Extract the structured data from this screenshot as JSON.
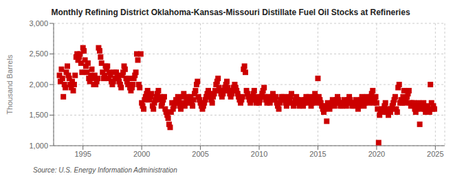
{
  "chart_data": {
    "type": "scatter",
    "title": "Monthly Refining District Oklahoma-Kansas-Missouri Distillate Fuel Oil Stocks at Refineries",
    "ylabel": "Thousand Barrels",
    "annotation": "Source: U.S. Energy Information Administration",
    "color": "#cc0000",
    "marker": "square",
    "grid": true,
    "xlim": [
      1992.5,
      2025.8
    ],
    "xticks": [
      1995,
      2000,
      2005,
      2010,
      2015,
      2020,
      2025
    ],
    "ylim": [
      1000,
      3000
    ],
    "yticks": [
      {
        "value": 1000,
        "label": "1,000"
      },
      {
        "value": 1500,
        "label": "1,500"
      },
      {
        "value": 2000,
        "label": "2,000"
      },
      {
        "value": 2500,
        "label": "2,500"
      },
      {
        "value": 3000,
        "label": "3,000"
      }
    ],
    "x": [
      1993.0,
      1993.08,
      1993.17,
      1993.25,
      1993.33,
      1993.42,
      1993.5,
      1993.58,
      1993.67,
      1993.75,
      1993.83,
      1993.92,
      1994.0,
      1994.08,
      1994.17,
      1994.25,
      1994.33,
      1994.42,
      1994.5,
      1994.58,
      1994.67,
      1994.75,
      1994.83,
      1994.92,
      1995.0,
      1995.08,
      1995.17,
      1995.25,
      1995.33,
      1995.42,
      1995.5,
      1995.58,
      1995.67,
      1995.75,
      1995.83,
      1995.92,
      1996.0,
      1996.08,
      1996.17,
      1996.25,
      1996.33,
      1996.42,
      1996.5,
      1996.58,
      1996.67,
      1996.75,
      1996.83,
      1996.92,
      1997.0,
      1997.08,
      1997.17,
      1997.25,
      1997.33,
      1997.42,
      1997.5,
      1997.58,
      1997.67,
      1997.75,
      1997.83,
      1997.92,
      1998.0,
      1998.08,
      1998.17,
      1998.25,
      1998.33,
      1998.42,
      1998.5,
      1998.58,
      1998.67,
      1998.75,
      1998.83,
      1998.92,
      1999.0,
      1999.08,
      1999.17,
      1999.25,
      1999.33,
      1999.42,
      1999.5,
      1999.58,
      1999.67,
      1999.75,
      1999.83,
      1999.92,
      2000.0,
      2000.08,
      2000.17,
      2000.25,
      2000.33,
      2000.42,
      2000.5,
      2000.58,
      2000.67,
      2000.75,
      2000.83,
      2000.92,
      2001.0,
      2001.08,
      2001.17,
      2001.25,
      2001.33,
      2001.42,
      2001.5,
      2001.58,
      2001.67,
      2001.75,
      2001.83,
      2001.92,
      2002.0,
      2002.08,
      2002.17,
      2002.25,
      2002.33,
      2002.42,
      2002.5,
      2002.58,
      2002.67,
      2002.75,
      2002.83,
      2002.92,
      2003.0,
      2003.08,
      2003.17,
      2003.25,
      2003.33,
      2003.42,
      2003.5,
      2003.58,
      2003.67,
      2003.75,
      2003.83,
      2003.92,
      2004.0,
      2004.08,
      2004.17,
      2004.25,
      2004.33,
      2004.42,
      2004.5,
      2004.58,
      2004.67,
      2004.75,
      2004.83,
      2004.92,
      2005.0,
      2005.08,
      2005.17,
      2005.25,
      2005.33,
      2005.42,
      2005.5,
      2005.58,
      2005.67,
      2005.75,
      2005.83,
      2005.92,
      2006.0,
      2006.08,
      2006.17,
      2006.25,
      2006.33,
      2006.42,
      2006.5,
      2006.58,
      2006.67,
      2006.75,
      2006.83,
      2006.92,
      2007.0,
      2007.08,
      2007.17,
      2007.25,
      2007.33,
      2007.42,
      2007.5,
      2007.58,
      2007.67,
      2007.75,
      2007.83,
      2007.92,
      2008.0,
      2008.08,
      2008.17,
      2008.25,
      2008.33,
      2008.42,
      2008.5,
      2008.58,
      2008.67,
      2008.75,
      2008.83,
      2008.92,
      2009.0,
      2009.08,
      2009.17,
      2009.25,
      2009.33,
      2009.42,
      2009.5,
      2009.58,
      2009.67,
      2009.75,
      2009.83,
      2009.92,
      2010.0,
      2010.08,
      2010.17,
      2010.25,
      2010.33,
      2010.42,
      2010.5,
      2010.58,
      2010.67,
      2010.75,
      2010.83,
      2010.92,
      2011.0,
      2011.08,
      2011.17,
      2011.25,
      2011.33,
      2011.42,
      2011.5,
      2011.58,
      2011.67,
      2011.75,
      2011.83,
      2011.92,
      2012.0,
      2012.08,
      2012.17,
      2012.25,
      2012.33,
      2012.42,
      2012.5,
      2012.58,
      2012.67,
      2012.75,
      2012.83,
      2012.92,
      2013.0,
      2013.08,
      2013.17,
      2013.25,
      2013.33,
      2013.42,
      2013.5,
      2013.58,
      2013.67,
      2013.75,
      2013.83,
      2013.92,
      2014.0,
      2014.08,
      2014.17,
      2014.25,
      2014.33,
      2014.42,
      2014.5,
      2014.58,
      2014.67,
      2014.75,
      2014.83,
      2014.92,
      2015.0,
      2015.08,
      2015.17,
      2015.25,
      2015.33,
      2015.42,
      2015.5,
      2015.58,
      2015.67,
      2015.75,
      2015.83,
      2015.92,
      2016.0,
      2016.08,
      2016.17,
      2016.25,
      2016.33,
      2016.42,
      2016.5,
      2016.58,
      2016.67,
      2016.75,
      2016.83,
      2016.92,
      2017.0,
      2017.08,
      2017.17,
      2017.25,
      2017.33,
      2017.42,
      2017.5,
      2017.58,
      2017.67,
      2017.75,
      2017.83,
      2017.92,
      2018.0,
      2018.08,
      2018.17,
      2018.25,
      2018.33,
      2018.42,
      2018.5,
      2018.58,
      2018.67,
      2018.75,
      2018.83,
      2018.92,
      2019.0,
      2019.08,
      2019.17,
      2019.25,
      2019.33,
      2019.42,
      2019.5,
      2019.58,
      2019.67,
      2019.75,
      2019.83,
      2019.92,
      2020.0,
      2020.08,
      2020.17,
      2020.25,
      2020.33,
      2020.42,
      2020.5,
      2020.58,
      2020.67,
      2020.75,
      2020.83,
      2020.92,
      2021.0,
      2021.08,
      2021.17,
      2021.25,
      2021.33,
      2021.42,
      2021.5,
      2021.58,
      2021.67,
      2021.75,
      2021.83,
      2021.92,
      2022.0,
      2022.08,
      2022.17,
      2022.25,
      2022.33,
      2022.42,
      2022.5,
      2022.58,
      2022.67,
      2022.75,
      2022.83,
      2022.92,
      2023.0,
      2023.08,
      2023.17,
      2023.25,
      2023.33,
      2023.42,
      2023.5,
      2023.58,
      2023.67,
      2023.75,
      2023.83,
      2023.92,
      2024.0,
      2024.08,
      2024.17,
      2024.25,
      2024.33,
      2024.42,
      2024.5,
      2024.58,
      2024.67,
      2024.75,
      2024.83,
      2024.92
    ],
    "values": [
      2150,
      2050,
      2250,
      2100,
      1800,
      2000,
      1950,
      2200,
      2300,
      2150,
      2100,
      2000,
      1950,
      2050,
      1900,
      2000,
      2150,
      2450,
      2500,
      2400,
      2450,
      2500,
      2350,
      2200,
      2600,
      2550,
      2400,
      2300,
      2200,
      2350,
      2100,
      2050,
      2150,
      2250,
      2100,
      2000,
      2150,
      2000,
      2050,
      2100,
      2600,
      2550,
      2450,
      2350,
      2200,
      2100,
      2150,
      2300,
      2250,
      2300,
      2100,
      2200,
      2150,
      2050,
      2000,
      2050,
      2200,
      2100,
      2200,
      2150,
      2100,
      2050,
      2000,
      1950,
      2150,
      2200,
      2300,
      2250,
      2100,
      2050,
      2000,
      2100,
      1950,
      1900,
      1950,
      2000,
      2100,
      2150,
      2200,
      2500,
      2400,
      2000,
      1950,
      2500,
      1700,
      1650,
      1600,
      1750,
      1800,
      1850,
      1900,
      1800,
      1750,
      1800,
      1850,
      1650,
      1600,
      1700,
      1750,
      1800,
      1850,
      1900,
      1750,
      1800,
      1650,
      1700,
      1750,
      1800,
      1600,
      1550,
      1500,
      1450,
      1350,
      1300,
      1550,
      1700,
      1600,
      1650,
      1700,
      1750,
      1700,
      1800,
      1750,
      1650,
      1600,
      1700,
      1800,
      1850,
      1650,
      1700,
      1750,
      1800,
      1700,
      1750,
      1800,
      1700,
      1650,
      1750,
      1850,
      1900,
      2000,
      2050,
      1800,
      1750,
      1700,
      1650,
      1600,
      1650,
      1700,
      1750,
      1800,
      1850,
      1900,
      1850,
      1800,
      1750,
      1700,
      1800,
      1850,
      1900,
      2000,
      2050,
      2100,
      1950,
      1900,
      1850,
      1800,
      1850,
      1900,
      1950,
      2000,
      2050,
      1950,
      1900,
      1850,
      1800,
      1850,
      1900,
      1950,
      2000,
      1950,
      1900,
      1850,
      1800,
      1750,
      1700,
      1750,
      1800,
      2250,
      2300,
      2200,
      1900,
      1850,
      1800,
      1750,
      1700,
      1750,
      1800,
      1850,
      1900,
      1750,
      1700,
      1800,
      1750,
      1700,
      1750,
      1800,
      1850,
      1900,
      1950,
      1800,
      1750,
      1700,
      1800,
      1750,
      1700,
      1750,
      1800,
      1850,
      1800,
      1750,
      1800,
      1700,
      1650,
      1600,
      1700,
      1750,
      1800,
      1750,
      1800,
      1750,
      1700,
      1650,
      1700,
      1800,
      1750,
      1800,
      1850,
      1700,
      1650,
      1700,
      1750,
      1800,
      1750,
      1700,
      1650,
      1700,
      1750,
      1700,
      1650,
      1700,
      1750,
      1800,
      1750,
      1700,
      1800,
      1750,
      1650,
      1700,
      1750,
      1800,
      1850,
      1700,
      1750,
      2100,
      1800,
      1750,
      1700,
      1650,
      1600,
      1550,
      1600,
      1650,
      1400,
      1700,
      1650,
      1600,
      1650,
      1700,
      1750,
      1700,
      1650,
      1700,
      1750,
      1800,
      1750,
      1700,
      1650,
      1700,
      1650,
      1700,
      1750,
      1700,
      1650,
      1700,
      1750,
      1800,
      1750,
      1700,
      1650,
      1700,
      1650,
      1700,
      1750,
      1700,
      1600,
      1650,
      1700,
      1750,
      1800,
      1700,
      1650,
      1700,
      1750,
      1800,
      1750,
      1700,
      1750,
      1800,
      1850,
      1900,
      1700,
      1750,
      1800,
      1700,
      1600,
      1050,
      1500,
      1550,
      1600,
      1550,
      1600,
      1650,
      1700,
      1600,
      1550,
      1500,
      1600,
      1550,
      1600,
      1650,
      1700,
      1750,
      1800,
      1600,
      1550,
      1950,
      2000,
      1700,
      1750,
      1700,
      1800,
      1900,
      1700,
      1750,
      1800,
      1850,
      1900,
      1700,
      1650,
      1700,
      1650,
      1700,
      1600,
      1550,
      1600,
      1650,
      1700,
      1350,
      1650,
      1600,
      1650,
      1700,
      1600,
      1550,
      1600,
      1650,
      1600,
      1550,
      2000,
      1700,
      1600,
      1650,
      1600
    ]
  }
}
